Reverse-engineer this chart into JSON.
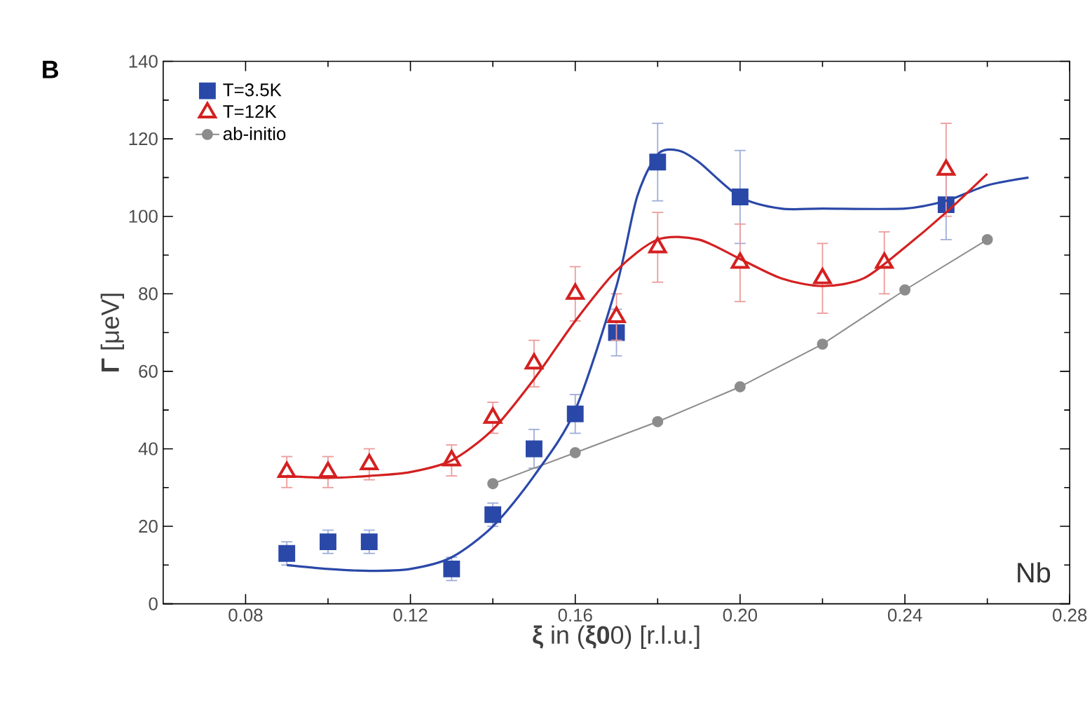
{
  "chart_data": {
    "type": "scatter",
    "xlabel": "**ξ** in (**ξ0**0) [r.l.u.]",
    "ylabel": "**Γ** [μeV]",
    "annotations": [
      "B",
      "Nb"
    ],
    "xlim": [
      0.06,
      0.28
    ],
    "ylim": [
      0,
      140
    ],
    "xticks": [
      {
        "value": 0.08,
        "label": "0.08"
      },
      {
        "value": 0.12,
        "label": "0.12"
      },
      {
        "value": 0.16,
        "label": "0.16"
      },
      {
        "value": 0.2,
        "label": "0.20"
      },
      {
        "value": 0.24,
        "label": "0.24"
      },
      {
        "value": 0.28,
        "label": "0.28"
      }
    ],
    "yticks": [
      0,
      20,
      40,
      60,
      80,
      100,
      120,
      140
    ],
    "grid": false,
    "legend": "top left",
    "series": [
      {
        "name": "T=3.5K",
        "marker": "square",
        "color": "#2a48a8",
        "x": [
          0.09,
          0.1,
          0.11,
          0.13,
          0.14,
          0.15,
          0.16,
          0.17,
          0.18,
          0.2,
          0.25
        ],
        "values": [
          13,
          16,
          16,
          9,
          23,
          40,
          49,
          70,
          114,
          105,
          103
        ],
        "errors": [
          3,
          3,
          3,
          3,
          3,
          5,
          5,
          6,
          10,
          12,
          9
        ]
      },
      {
        "name": "T=12K",
        "marker": "triangle",
        "color": "#d42020",
        "x": [
          0.09,
          0.1,
          0.11,
          0.13,
          0.14,
          0.15,
          0.16,
          0.17,
          0.18,
          0.2,
          0.22,
          0.235,
          0.25
        ],
        "values": [
          34,
          34,
          36,
          37,
          48,
          62,
          80,
          74,
          92,
          88,
          84,
          88,
          112
        ],
        "errors": [
          4,
          4,
          4,
          4,
          4,
          6,
          7,
          6,
          9,
          10,
          9,
          8,
          12
        ]
      },
      {
        "name": "ab-initio",
        "type": "line",
        "marker": "circle",
        "line_style": "solid",
        "color": "#8c8c8c",
        "x": [
          0.14,
          0.16,
          0.18,
          0.2,
          0.22,
          0.24,
          0.26
        ],
        "values": [
          31,
          39,
          47,
          56,
          67,
          81,
          94
        ]
      },
      {
        "type": "line",
        "marker": "none",
        "line_style": "solid",
        "color": "#2a48a8",
        "x": [
          0.09,
          0.1,
          0.11,
          0.12,
          0.13,
          0.14,
          0.15,
          0.16,
          0.17,
          0.175,
          0.18,
          0.185,
          0.19,
          0.2,
          0.21,
          0.22,
          0.24,
          0.25,
          0.26,
          0.27
        ],
        "values": [
          10,
          9,
          8.5,
          9,
          12,
          20,
          33,
          50,
          82,
          105,
          116,
          117,
          114,
          105,
          102,
          102,
          102,
          104,
          108,
          110
        ]
      },
      {
        "type": "line",
        "marker": "none",
        "line_style": "solid",
        "color": "#d42020",
        "x": [
          0.09,
          0.1,
          0.11,
          0.12,
          0.13,
          0.14,
          0.15,
          0.16,
          0.17,
          0.18,
          0.19,
          0.2,
          0.21,
          0.22,
          0.23,
          0.24,
          0.25,
          0.26
        ],
        "values": [
          33,
          32.5,
          33,
          34,
          37,
          45,
          58,
          73,
          86,
          94,
          94,
          89,
          84,
          82,
          84,
          92,
          101,
          111
        ]
      }
    ]
  }
}
